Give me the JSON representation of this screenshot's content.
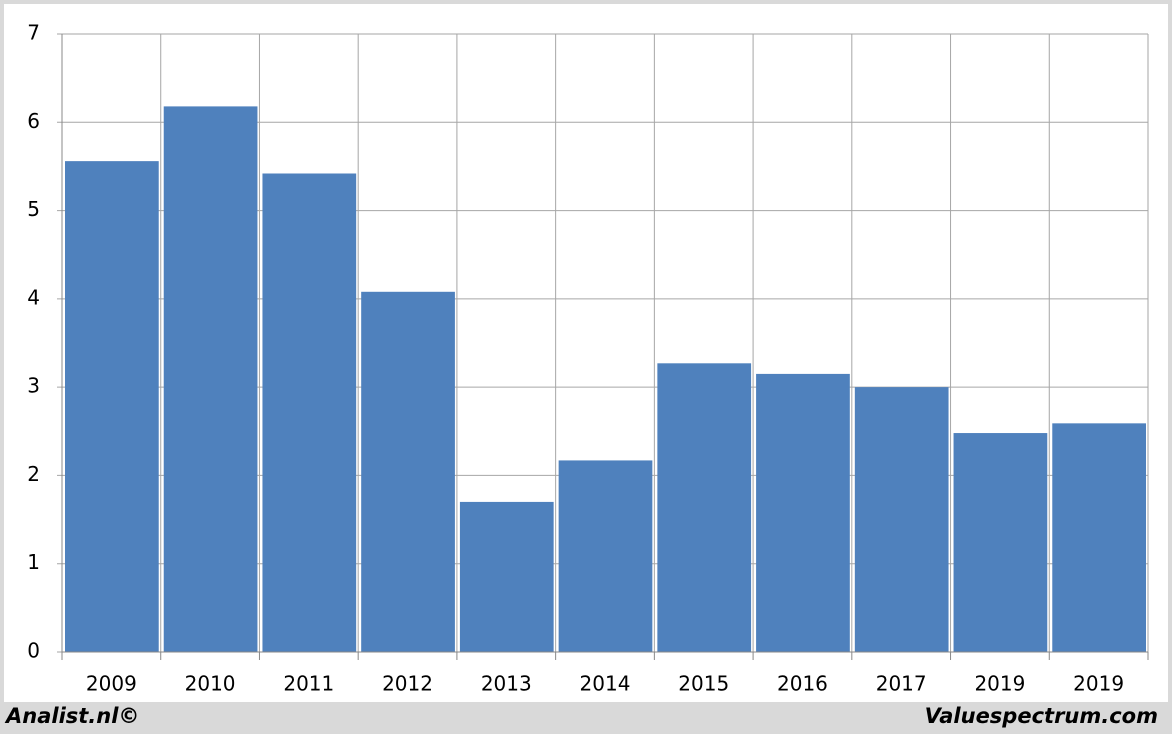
{
  "chart_data": {
    "type": "bar",
    "categories": [
      "2009",
      "2010",
      "2011",
      "2012",
      "2013",
      "2014",
      "2015",
      "2016",
      "2017",
      "2019",
      "2019"
    ],
    "values": [
      5.56,
      6.18,
      5.42,
      4.08,
      1.7,
      2.17,
      3.27,
      3.15,
      3.0,
      2.48,
      2.59
    ],
    "color": "#4f81bd",
    "ylim": [
      0,
      7
    ],
    "yticks": [
      0,
      1,
      2,
      3,
      4,
      5,
      6,
      7
    ],
    "grid": true,
    "credit_left": "Analist.nl©",
    "credit_right": "Valuespectrum.com"
  }
}
